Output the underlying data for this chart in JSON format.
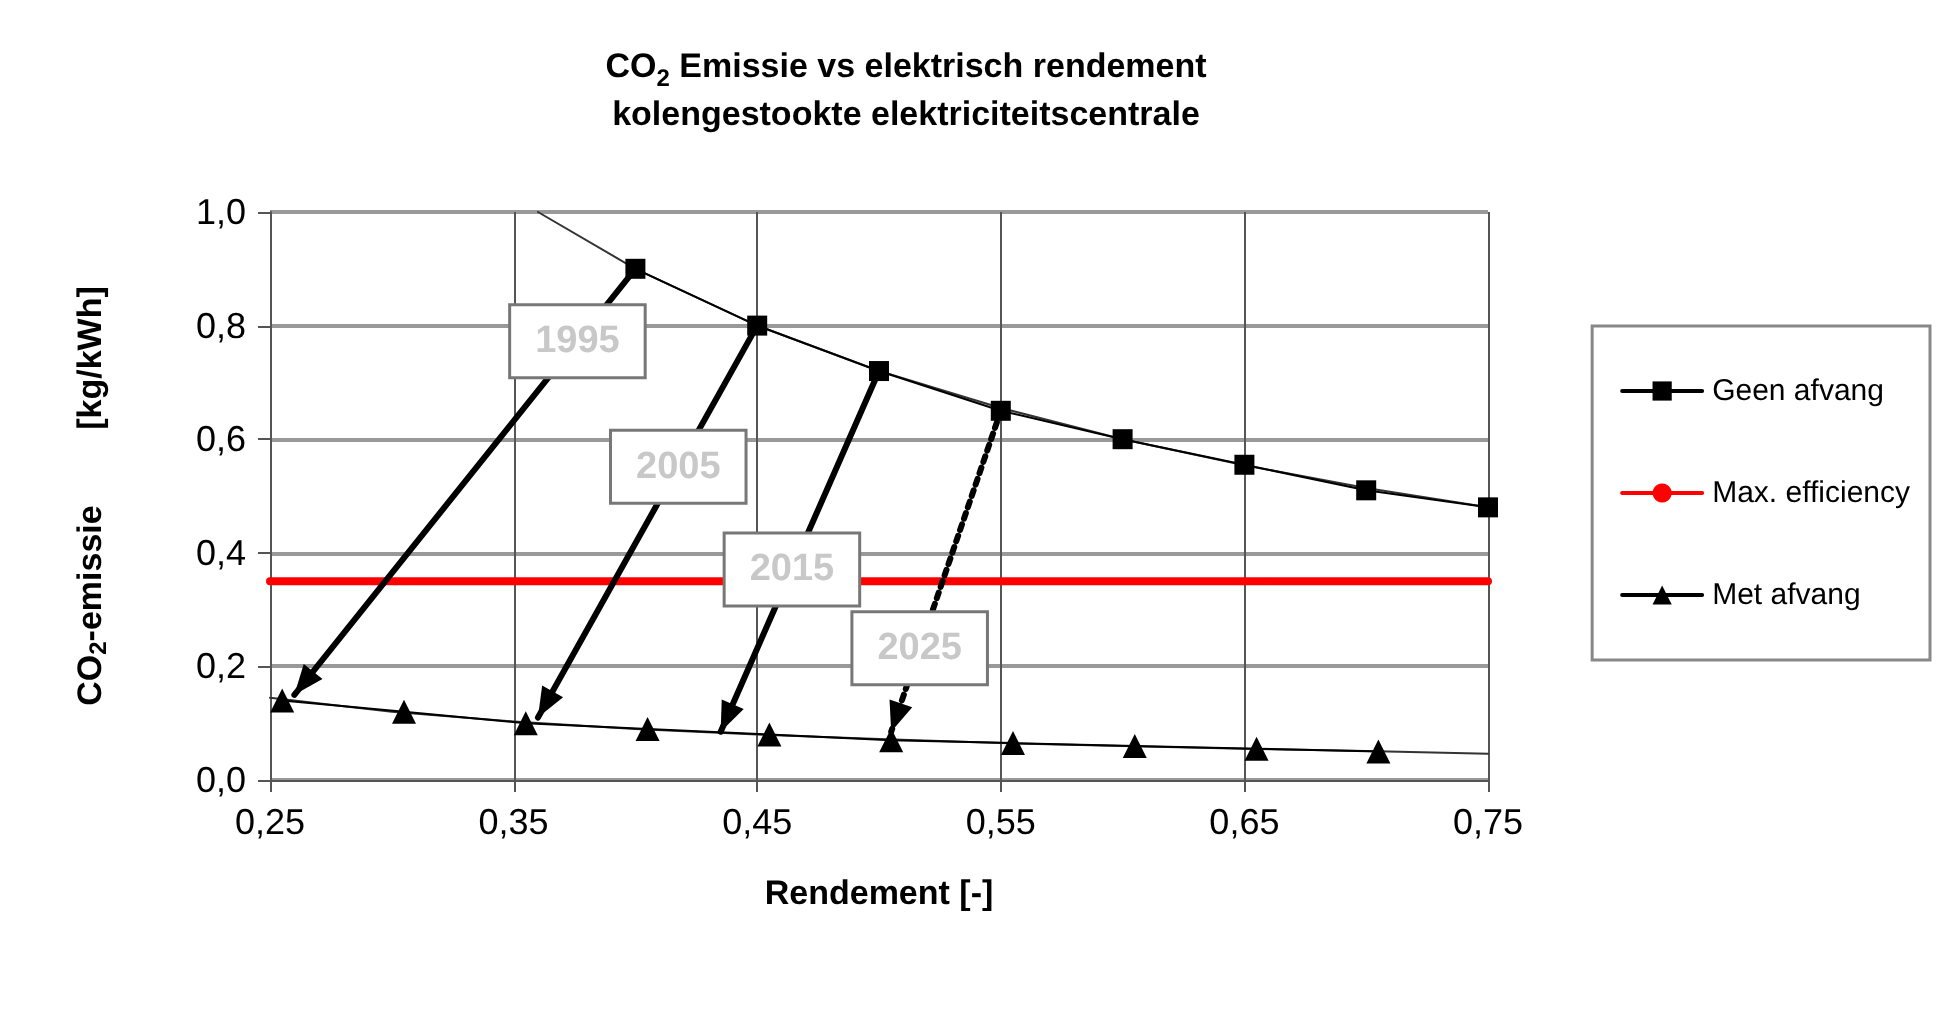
{
  "chart_data": {
    "type": "line",
    "title": "CO$_{2}$ Emissie vs elektrisch rendement\nkolengestookte elektriciteitscentrale",
    "xlabel": "Rendement [-]",
    "ylabel": "CO$_{2}$-emissie        [kg/kWh]",
    "xlim": [
      0.25,
      0.75
    ],
    "xticks": [
      {
        "value": 0.25,
        "label": "0,25"
      },
      {
        "value": 0.35,
        "label": "0,35"
      },
      {
        "value": 0.45,
        "label": "0,45"
      },
      {
        "value": 0.55,
        "label": "0,55"
      },
      {
        "value": 0.65,
        "label": "0,65"
      },
      {
        "value": 0.75,
        "label": "0,75"
      }
    ],
    "ylim": [
      0,
      1
    ],
    "yticks": [
      {
        "value": 0,
        "label": "0,0"
      },
      {
        "value": 0.2,
        "label": "0,2"
      },
      {
        "value": 0.4,
        "label": "0,4"
      },
      {
        "value": 0.6,
        "label": "0,6"
      },
      {
        "value": 0.8,
        "label": "0,8"
      },
      {
        "value": 1,
        "label": "1,0"
      }
    ],
    "grid": true,
    "legend": "right",
    "series": [
      {
        "name": "Geen afvang",
        "color": "#000000",
        "marker": "square",
        "x": [
          0.4,
          0.45,
          0.5,
          0.55,
          0.6,
          0.65,
          0.7,
          0.75
        ],
        "values": [
          0.9,
          0.8,
          0.72,
          0.65,
          0.6,
          0.555,
          0.51,
          0.48
        ]
      },
      {
        "name": "Max. efficiency",
        "color": "#ff0000",
        "marker": "none",
        "x": [
          0.25,
          0.75
        ],
        "values": [
          0.35,
          0.35
        ]
      },
      {
        "name": "Met afvang",
        "color": "#000000",
        "marker": "triangle",
        "x": [
          0.255,
          0.305,
          0.355,
          0.405,
          0.455,
          0.505,
          0.555,
          0.605,
          0.655,
          0.705
        ],
        "values": [
          0.14,
          0.12,
          0.1,
          0.09,
          0.08,
          0.07,
          0.065,
          0.06,
          0.055,
          0.05
        ]
      },
      {
        "color": "#333333",
        "marker": "none",
        "x": [
          0.36,
          0.4,
          0.45,
          0.5,
          0.55,
          0.6,
          0.65,
          0.7,
          0.75
        ],
        "values": [
          1.0,
          0.9,
          0.8,
          0.72,
          0.655,
          0.6,
          0.554,
          0.514,
          0.48
        ]
      },
      {
        "color": "#333333",
        "marker": "none",
        "x": [
          0.25,
          0.3,
          0.35,
          0.4,
          0.45,
          0.5,
          0.55,
          0.6,
          0.65,
          0.7,
          0.75
        ],
        "values": [
          0.145,
          0.12,
          0.103,
          0.09,
          0.08,
          0.072,
          0.065,
          0.06,
          0.055,
          0.051,
          0.046
        ]
      },
      {
        "color": "#000000",
        "marker": "none",
        "x": [
          0.4,
          0.26
        ],
        "values": [
          0.9,
          0.15
        ]
      },
      {
        "color": "#000000",
        "marker": "none",
        "x": [
          0.45,
          0.36
        ],
        "values": [
          0.8,
          0.11
        ]
      },
      {
        "color": "#000000",
        "marker": "none",
        "x": [
          0.5,
          0.435
        ],
        "values": [
          0.72,
          0.085
        ]
      },
      {
        "color": "#000000",
        "marker": "none",
        "line_style": "dotted",
        "x": [
          0.55,
          0.505
        ],
        "values": [
          0.65,
          0.085
        ]
      }
    ],
    "annotations": [
      "1995",
      "2005",
      "2015",
      "2025"
    ]
  }
}
